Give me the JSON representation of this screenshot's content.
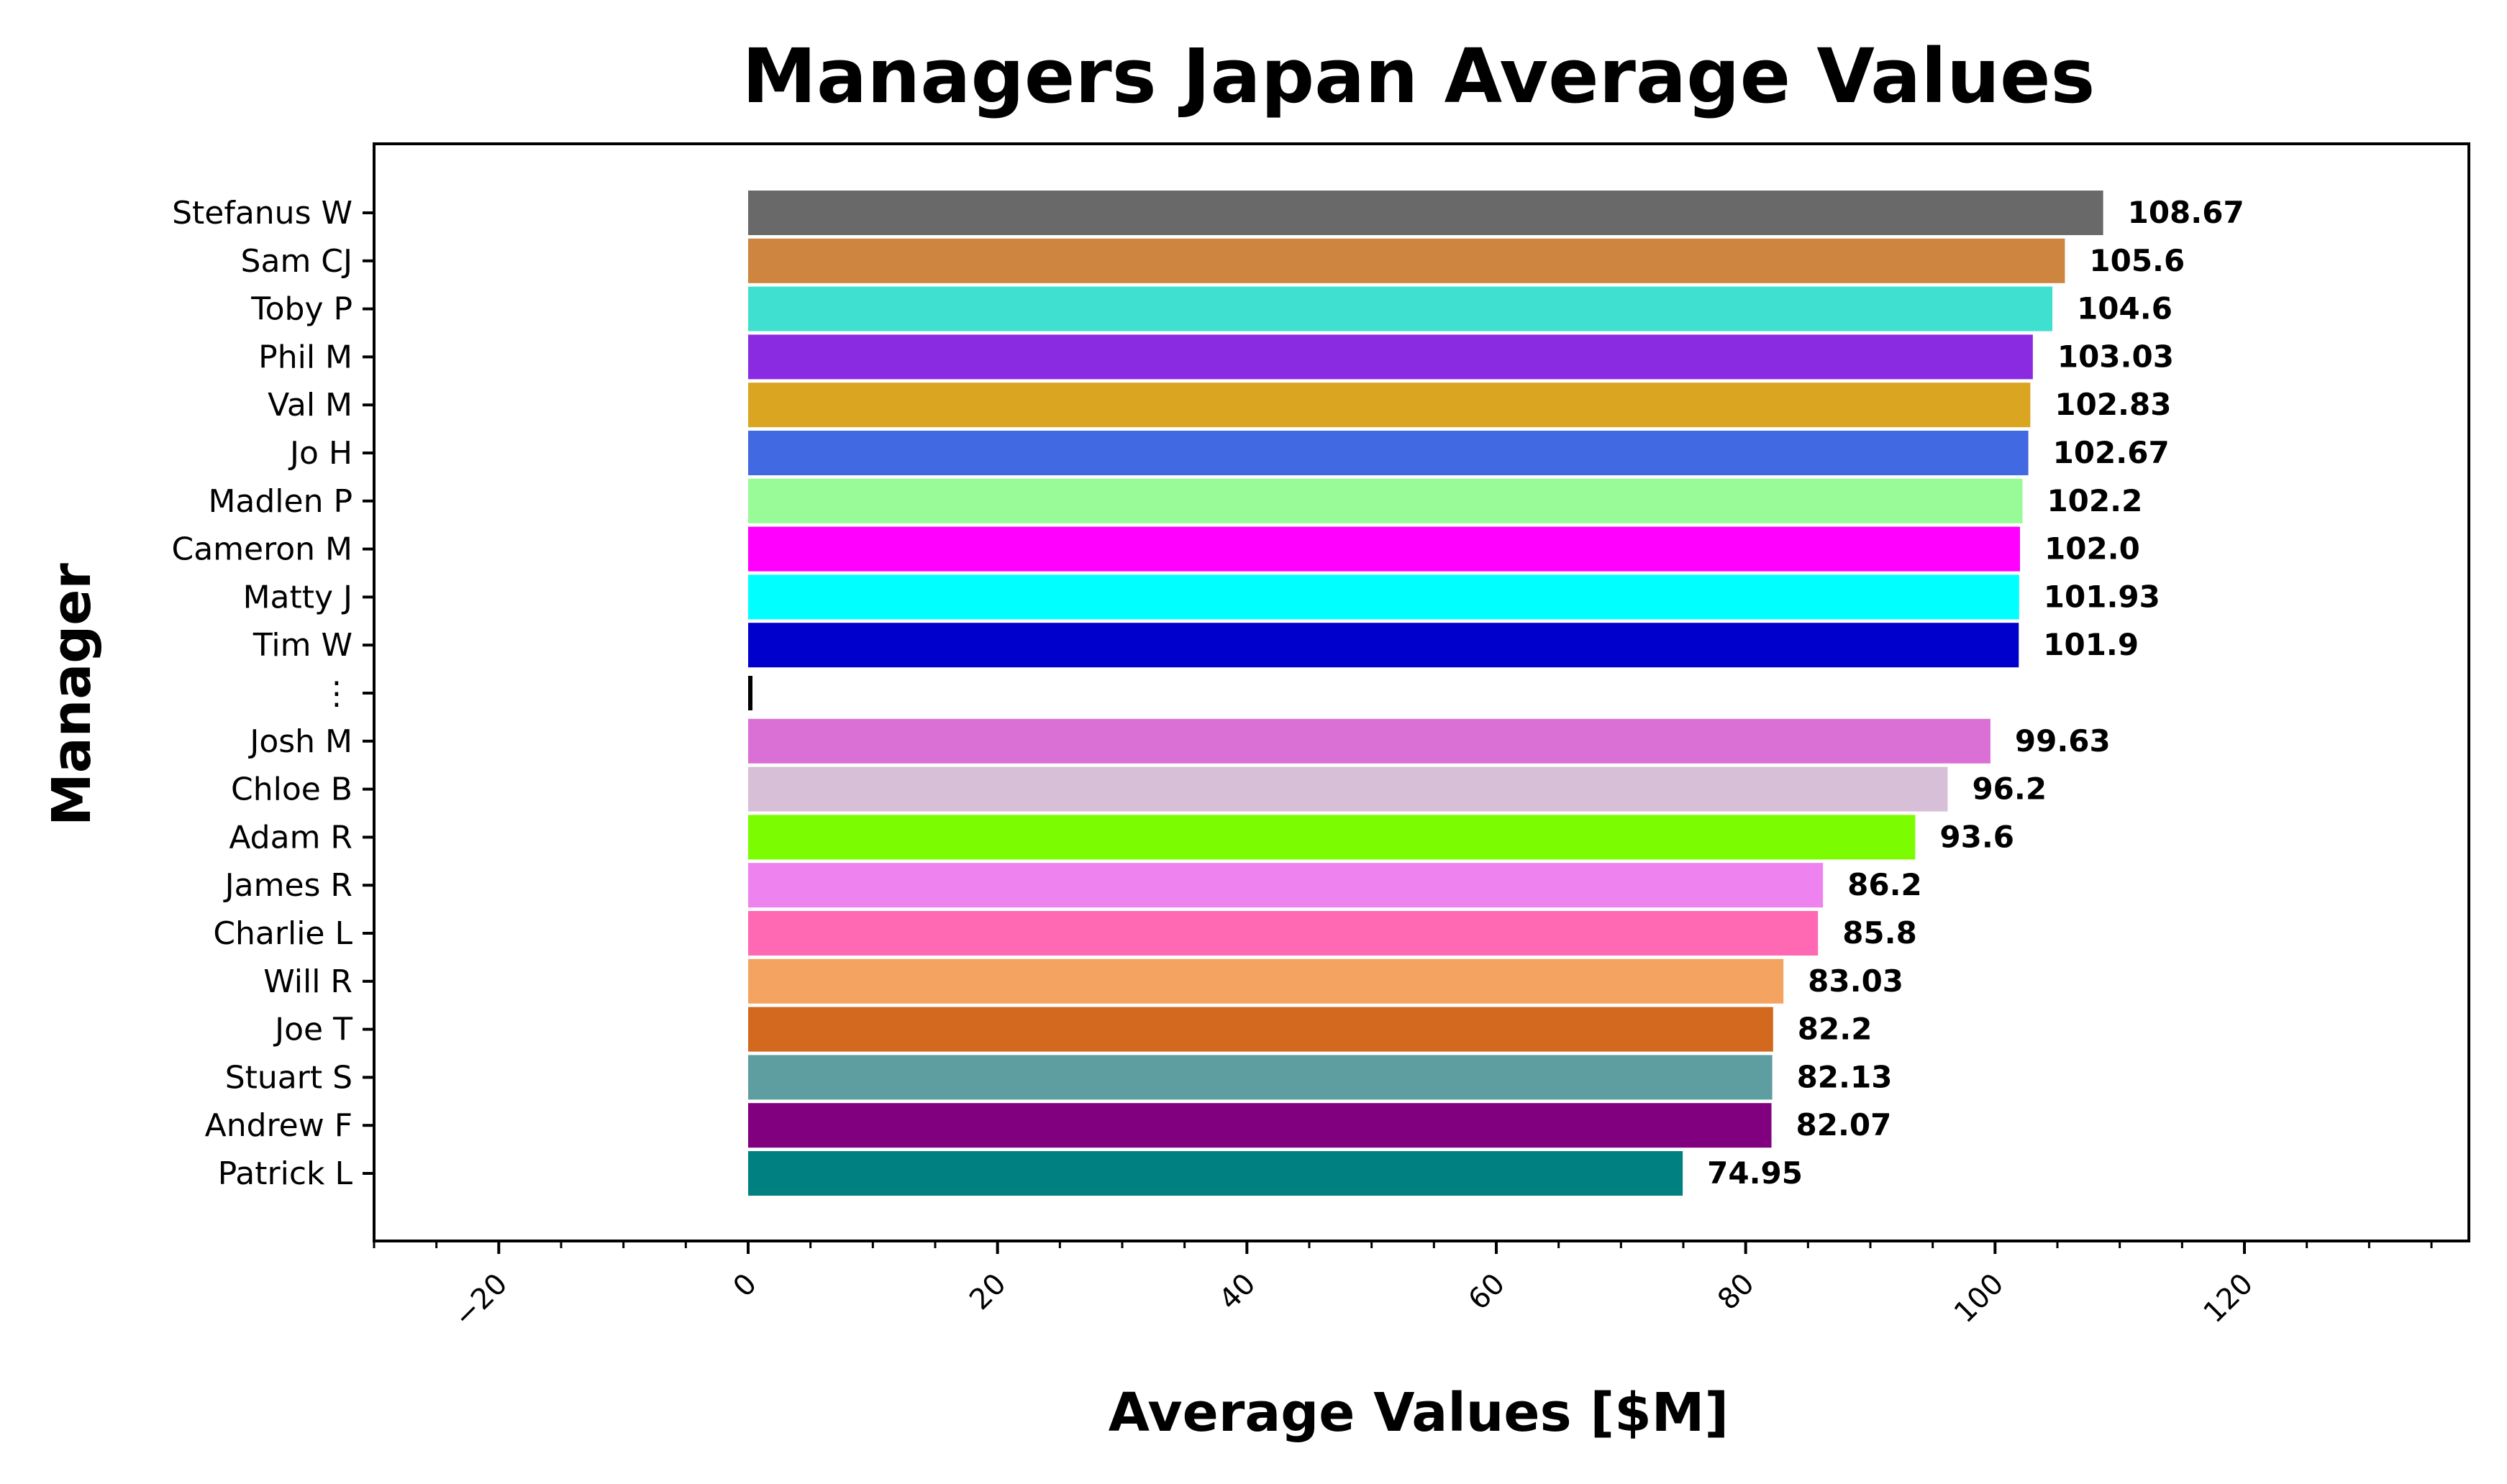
{
  "chart_data": {
    "type": "bar",
    "orientation": "horizontal",
    "title": "Managers Japan Average Values",
    "xlabel": "Average Values [$M]",
    "ylabel": "Manager",
    "xlim": [
      -30,
      138
    ],
    "xticks": [
      -20,
      0,
      20,
      40,
      60,
      80,
      100,
      120
    ],
    "xtick_labels": [
      "−20",
      "0",
      "20",
      "40",
      "60",
      "80",
      "100",
      "120"
    ],
    "grid": false,
    "legend": "none",
    "categories": [
      "Stefanus W",
      "Sam CJ",
      "Toby P",
      "Phil M",
      "Val M",
      "Jo H",
      "Madlen P",
      "Cameron M",
      "Matty J",
      "Tim W",
      "⋮",
      "Josh M",
      "Chloe B",
      "Adam R",
      "James R",
      "Charlie L",
      "Will R",
      "Joe T",
      "Stuart S",
      "Andrew F",
      "Patrick L"
    ],
    "values": [
      108.67,
      105.6,
      104.6,
      103.03,
      102.83,
      102.67,
      102.2,
      102.0,
      101.93,
      101.9,
      null,
      99.63,
      96.2,
      93.6,
      86.2,
      85.8,
      83.03,
      82.2,
      82.13,
      82.07,
      74.95
    ],
    "value_labels": [
      "108.67",
      "105.6",
      "104.6",
      "103.03",
      "102.83",
      "102.67",
      "102.2",
      "102.0",
      "101.93",
      "101.9",
      "",
      "99.63",
      "96.2",
      "93.6",
      "86.2",
      "85.8",
      "83.03",
      "82.2",
      "82.13",
      "82.07",
      "74.95"
    ],
    "colors": [
      "#696969",
      "#cd853f",
      "#40e0d0",
      "#8a2be2",
      "#daa520",
      "#4169e1",
      "#98fb98",
      "#ff00ff",
      "#00ffff",
      "#0000cd",
      "#000000",
      "#da70d6",
      "#d8bfd8",
      "#7cfc00",
      "#ee82ee",
      "#ff69b4",
      "#f4a460",
      "#d2691e",
      "#5f9ea0",
      "#800080",
      "#008080"
    ]
  }
}
